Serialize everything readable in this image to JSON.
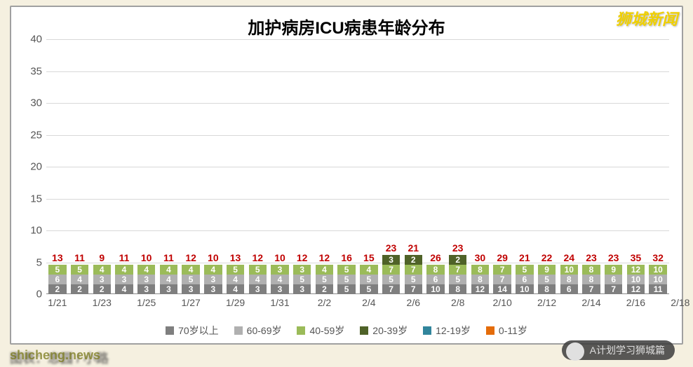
{
  "title": "加护病房ICU病患年龄分布",
  "watermarks": {
    "topRight": "狮城新闻",
    "bottomRight": "A计划学习狮城篇",
    "bottomLeft": "shicheng.news",
    "source": "图表：忠园 / 小路"
  },
  "chart": {
    "type": "stacked-bar",
    "background_color": "#ffffff",
    "grid_color": "#d8d8d8",
    "axis_font_color": "#555555",
    "title_fontsize": 24,
    "axis_fontsize": 15,
    "total_label_color": "#c00000",
    "segment_label_color": "#ffffff",
    "y": {
      "min": 0,
      "max": 40,
      "step": 5
    },
    "x": {
      "labels": [
        "1/21",
        "1/23",
        "1/25",
        "1/27",
        "1/29",
        "1/31",
        "2/2",
        "2/4",
        "2/6",
        "2/8",
        "2/10",
        "2/12",
        "2/14",
        "2/16",
        "2/18"
      ],
      "label_every": 2,
      "label_offset": 0.5
    },
    "bar_width_ratio": 0.8,
    "series": [
      {
        "key": "s70",
        "name": "70岁以上",
        "color": "#7f7f7f"
      },
      {
        "key": "s60",
        "name": "60-69岁",
        "color": "#b0b0b0"
      },
      {
        "key": "s40",
        "name": "40-59岁",
        "color": "#9bbb59"
      },
      {
        "key": "s20",
        "name": "20-39岁",
        "color": "#4f6228"
      },
      {
        "key": "s12",
        "name": "12-19岁",
        "color": "#31859c"
      },
      {
        "key": "s0",
        "name": "0-11岁",
        "color": "#e46c0a"
      }
    ],
    "data": [
      {
        "date": "1/21",
        "total": 13,
        "s70": 2,
        "s60": 6,
        "s40": 5,
        "s20": 0,
        "s12": 0,
        "s0": 0
      },
      {
        "date": "1/22",
        "total": 11,
        "s70": 2,
        "s60": 4,
        "s40": 5,
        "s20": 0,
        "s12": 0,
        "s0": 0
      },
      {
        "date": "1/23",
        "total": 9,
        "s70": 2,
        "s60": 3,
        "s40": 4,
        "s20": 0,
        "s12": 0,
        "s0": 0
      },
      {
        "date": "1/24",
        "total": 11,
        "s70": 4,
        "s60": 3,
        "s40": 4,
        "s20": 0,
        "s12": 0,
        "s0": 0
      },
      {
        "date": "1/25",
        "total": 10,
        "s70": 3,
        "s60": 3,
        "s40": 4,
        "s20": 0,
        "s12": 0,
        "s0": 0
      },
      {
        "date": "1/26",
        "total": 11,
        "s70": 3,
        "s60": 4,
        "s40": 4,
        "s20": 0,
        "s12": 0,
        "s0": 0
      },
      {
        "date": "1/27",
        "total": 12,
        "s70": 3,
        "s60": 5,
        "s40": 4,
        "s20": 0,
        "s12": 0,
        "s0": 0
      },
      {
        "date": "1/28",
        "total": 10,
        "s70": 3,
        "s60": 3,
        "s40": 4,
        "s20": 0,
        "s12": 0,
        "s0": 0
      },
      {
        "date": "1/29",
        "total": 13,
        "s70": 4,
        "s60": 4,
        "s40": 5,
        "s20": 0,
        "s12": 0,
        "s0": 0
      },
      {
        "date": "1/30",
        "total": 12,
        "s70": 3,
        "s60": 4,
        "s40": 5,
        "s20": 0,
        "s12": 0,
        "s0": 0
      },
      {
        "date": "1/31",
        "total": 10,
        "s70": 3,
        "s60": 4,
        "s40": 3,
        "s20": 0,
        "s12": 0,
        "s0": 0
      },
      {
        "date": "2/1",
        "total": 12,
        "s70": 3,
        "s60": 5,
        "s40": 3,
        "s20": 1,
        "s12": 0,
        "s0": 0
      },
      {
        "date": "2/2",
        "total": 12,
        "s70": 2,
        "s60": 5,
        "s40": 4,
        "s20": 1,
        "s12": 0,
        "s0": 0
      },
      {
        "date": "2/3",
        "total": 16,
        "s70": 5,
        "s60": 5,
        "s40": 5,
        "s20": 1,
        "s12": 0,
        "s0": 0
      },
      {
        "date": "2/4",
        "total": 15,
        "s70": 5,
        "s60": 5,
        "s40": 4,
        "s20": 1,
        "s12": 0,
        "s0": 0
      },
      {
        "date": "2/5",
        "total": 23,
        "s70": 7,
        "s60": 5,
        "s40": 7,
        "s20": 3,
        "s12": 0,
        "s0": 1
      },
      {
        "date": "2/6",
        "total": 21,
        "s70": 7,
        "s60": 5,
        "s40": 7,
        "s20": 2,
        "s12": 0,
        "s0": 0
      },
      {
        "date": "2/7",
        "total": 26,
        "s70": 10,
        "s60": 6,
        "s40": 8,
        "s20": 1,
        "s12": 0,
        "s0": 1
      },
      {
        "date": "2/8",
        "total": 23,
        "s70": 8,
        "s60": 5,
        "s40": 7,
        "s20": 2,
        "s12": 0,
        "s0": 1
      },
      {
        "date": "2/9",
        "total": 30,
        "s70": 12,
        "s60": 8,
        "s40": 8,
        "s20": 0,
        "s12": 1,
        "s0": 1
      },
      {
        "date": "2/10",
        "total": 29,
        "s70": 14,
        "s60": 7,
        "s40": 7,
        "s20": 0,
        "s12": 0,
        "s0": 1
      },
      {
        "date": "2/11",
        "total": 21,
        "s70": 10,
        "s60": 6,
        "s40": 5,
        "s20": 0,
        "s12": 0,
        "s0": 0
      },
      {
        "date": "2/12",
        "total": 22,
        "s70": 8,
        "s60": 5,
        "s40": 9,
        "s20": 0,
        "s12": 0,
        "s0": 0
      },
      {
        "date": "2/13",
        "total": 24,
        "s70": 6,
        "s60": 8,
        "s40": 10,
        "s20": 0,
        "s12": 0,
        "s0": 0
      },
      {
        "date": "2/14",
        "total": 23,
        "s70": 7,
        "s60": 8,
        "s40": 8,
        "s20": 0,
        "s12": 0,
        "s0": 0
      },
      {
        "date": "2/15",
        "total": 23,
        "s70": 7,
        "s60": 6,
        "s40": 9,
        "s20": 0,
        "s12": 0,
        "s0": 1
      },
      {
        "date": "2/16",
        "total": 35,
        "s70": 12,
        "s60": 10,
        "s40": 12,
        "s20": 0,
        "s12": 0,
        "s0": 1
      },
      {
        "date": "2/17",
        "total": 32,
        "s70": 11,
        "s60": 10,
        "s40": 10,
        "s20": 0,
        "s12": 0,
        "s0": 1
      }
    ]
  }
}
